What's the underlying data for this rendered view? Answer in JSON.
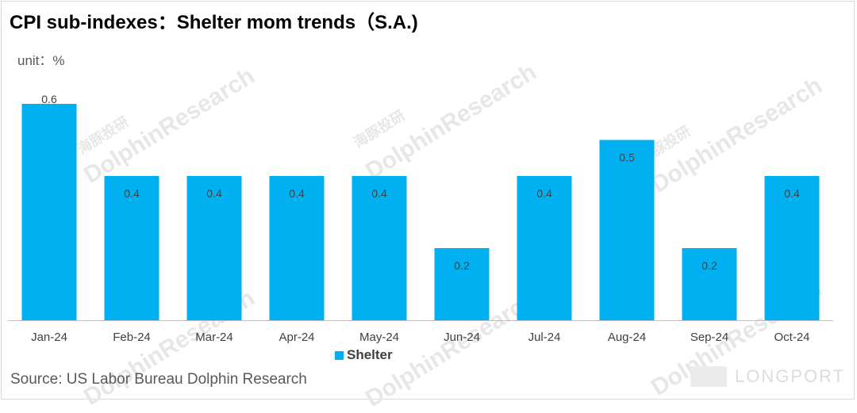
{
  "title": "CPI sub-indexes：Shelter mom trends（S.A.)",
  "unit": "unit：%",
  "source": "Source: US Labor Bureau Dolphin Research",
  "watermark": {
    "brand": "DolphinResearch",
    "brand_cn": "海豚投研",
    "footer_logo": "LONGPORT"
  },
  "colors": {
    "bar": "#00b0f0",
    "text": "#404040",
    "axis": "#bfbfbf"
  },
  "chart_data": {
    "type": "bar",
    "title": "CPI sub-indexes：Shelter mom trends（S.A.)",
    "xlabel": "",
    "ylabel": "unit：%",
    "categories": [
      "Jan-24",
      "Feb-24",
      "Mar-24",
      "Apr-24",
      "May-24",
      "Jun-24",
      "Jul-24",
      "Aug-24",
      "Sep-24",
      "Oct-24"
    ],
    "series": [
      {
        "name": "Shelter",
        "values": [
          0.6,
          0.4,
          0.4,
          0.4,
          0.4,
          0.2,
          0.4,
          0.5,
          0.2,
          0.4
        ],
        "labels": [
          "0.6",
          "0.4",
          "0.4",
          "0.4",
          "0.4",
          "0.2",
          "0.4",
          "0.5",
          "0.2",
          "0.4"
        ]
      }
    ],
    "ylim": [
      0,
      0.6
    ],
    "grid": false,
    "legend": "bottom"
  }
}
